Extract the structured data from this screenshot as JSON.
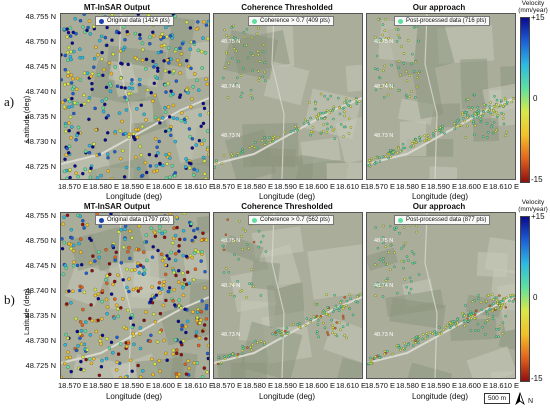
{
  "columns": {
    "col1_title": "MT-InSAR Output",
    "col2_title": "Coherence Thresholded",
    "col3_title": "Our approach"
  },
  "rows": [
    {
      "label": "a)",
      "legend1": "Original data (1424 pts)",
      "legend2": "Coherence > 0.7 (409 pts)",
      "legend3": "Post-processed data (716 pts)"
    },
    {
      "label": "b)",
      "legend1": "Original data (1797 pts)",
      "legend2": "Coherence > 0.7 (562 pts)",
      "legend3": "Post-processed data (877 pts)"
    }
  ],
  "axes": {
    "ylabel": "Latitude (deg)",
    "xlabel": "Longitude (deg)",
    "yticks": [
      "48.755 N",
      "48.750 N",
      "48.745 N",
      "48.740 N",
      "48.735 N",
      "48.730 N",
      "48.725 N"
    ],
    "xticks": [
      "18.570 E",
      "18.580 E",
      "18.590 E",
      "18.600 E",
      "18.610 E"
    ],
    "inner_yticks": [
      "48.75 N",
      "48.74 N",
      "48.73 N"
    ]
  },
  "colorbar": {
    "title_line1": "Velocity",
    "title_line2": "(mm/year)",
    "max_label": "+15",
    "mid_label": "0",
    "min_label": "-15",
    "colors": [
      "#0a0a8c",
      "#1d5fd6",
      "#2fb9e0",
      "#5fe0a0",
      "#d8e84a",
      "#f2c12a",
      "#e2641f",
      "#8c1010"
    ]
  },
  "scalebar": {
    "label": "500 m"
  },
  "north_arrow": {
    "label": "N"
  },
  "map_colors": {
    "background": "#a9ad9a",
    "field_light": "#c7c9b8",
    "field_dark": "#8d957f",
    "road": "#d9d8cf"
  }
}
